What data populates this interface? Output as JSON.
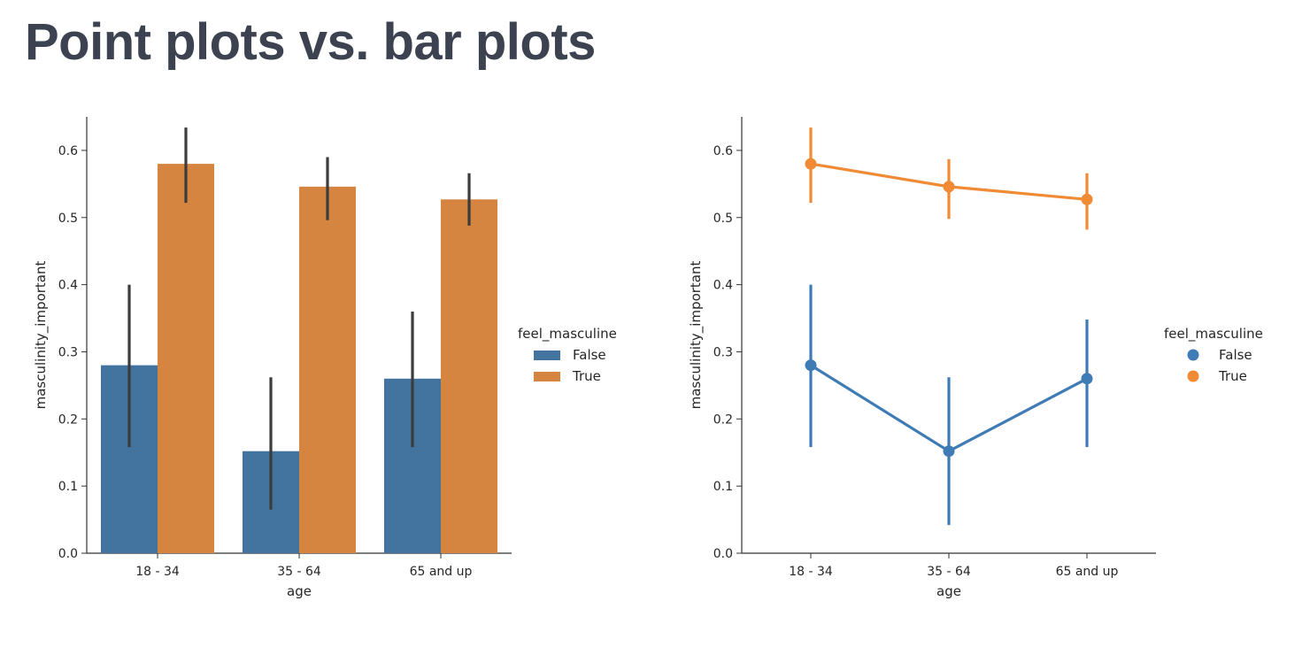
{
  "page": {
    "title": "Point plots vs. bar plots"
  },
  "colors": {
    "False": "#4374a0",
    "True": "#d5853f",
    "false_point": "#3f7bb5",
    "true_point": "#f08a34",
    "err_bar": "#3c3c3c"
  },
  "chart_data": [
    {
      "type": "bar",
      "title": "",
      "xlabel": "age",
      "ylabel": "masculinity_important",
      "categories": [
        "18 - 34",
        "35 - 64",
        "65 and up"
      ],
      "ylim": [
        0,
        0.65
      ],
      "yticks": [
        "0.0",
        "0.1",
        "0.2",
        "0.3",
        "0.4",
        "0.5",
        "0.6"
      ],
      "legend": {
        "title": "feel_masculine",
        "placement": "right",
        "entries": [
          "False",
          "True"
        ]
      },
      "series": [
        {
          "name": "False",
          "values": [
            0.28,
            0.152,
            0.26
          ],
          "ci_low": [
            0.158,
            0.065,
            0.158
          ],
          "ci_high": [
            0.4,
            0.262,
            0.36
          ]
        },
        {
          "name": "True",
          "values": [
            0.58,
            0.546,
            0.527
          ],
          "ci_low": [
            0.522,
            0.496,
            0.488
          ],
          "ci_high": [
            0.634,
            0.59,
            0.566
          ]
        }
      ]
    },
    {
      "type": "line",
      "title": "",
      "xlabel": "age",
      "ylabel": "masculinity_important",
      "categories": [
        "18 - 34",
        "35 - 64",
        "65 and up"
      ],
      "ylim": [
        0,
        0.65
      ],
      "yticks": [
        "0.0",
        "0.1",
        "0.2",
        "0.3",
        "0.4",
        "0.5",
        "0.6"
      ],
      "legend": {
        "title": "feel_masculine",
        "placement": "right",
        "entries": [
          "False",
          "True"
        ]
      },
      "series": [
        {
          "name": "False",
          "values": [
            0.28,
            0.152,
            0.26
          ],
          "ci_low": [
            0.158,
            0.042,
            0.158
          ],
          "ci_high": [
            0.4,
            0.262,
            0.348
          ]
        },
        {
          "name": "True",
          "values": [
            0.58,
            0.546,
            0.527
          ],
          "ci_low": [
            0.522,
            0.498,
            0.482
          ],
          "ci_high": [
            0.634,
            0.587,
            0.566
          ]
        }
      ]
    }
  ]
}
